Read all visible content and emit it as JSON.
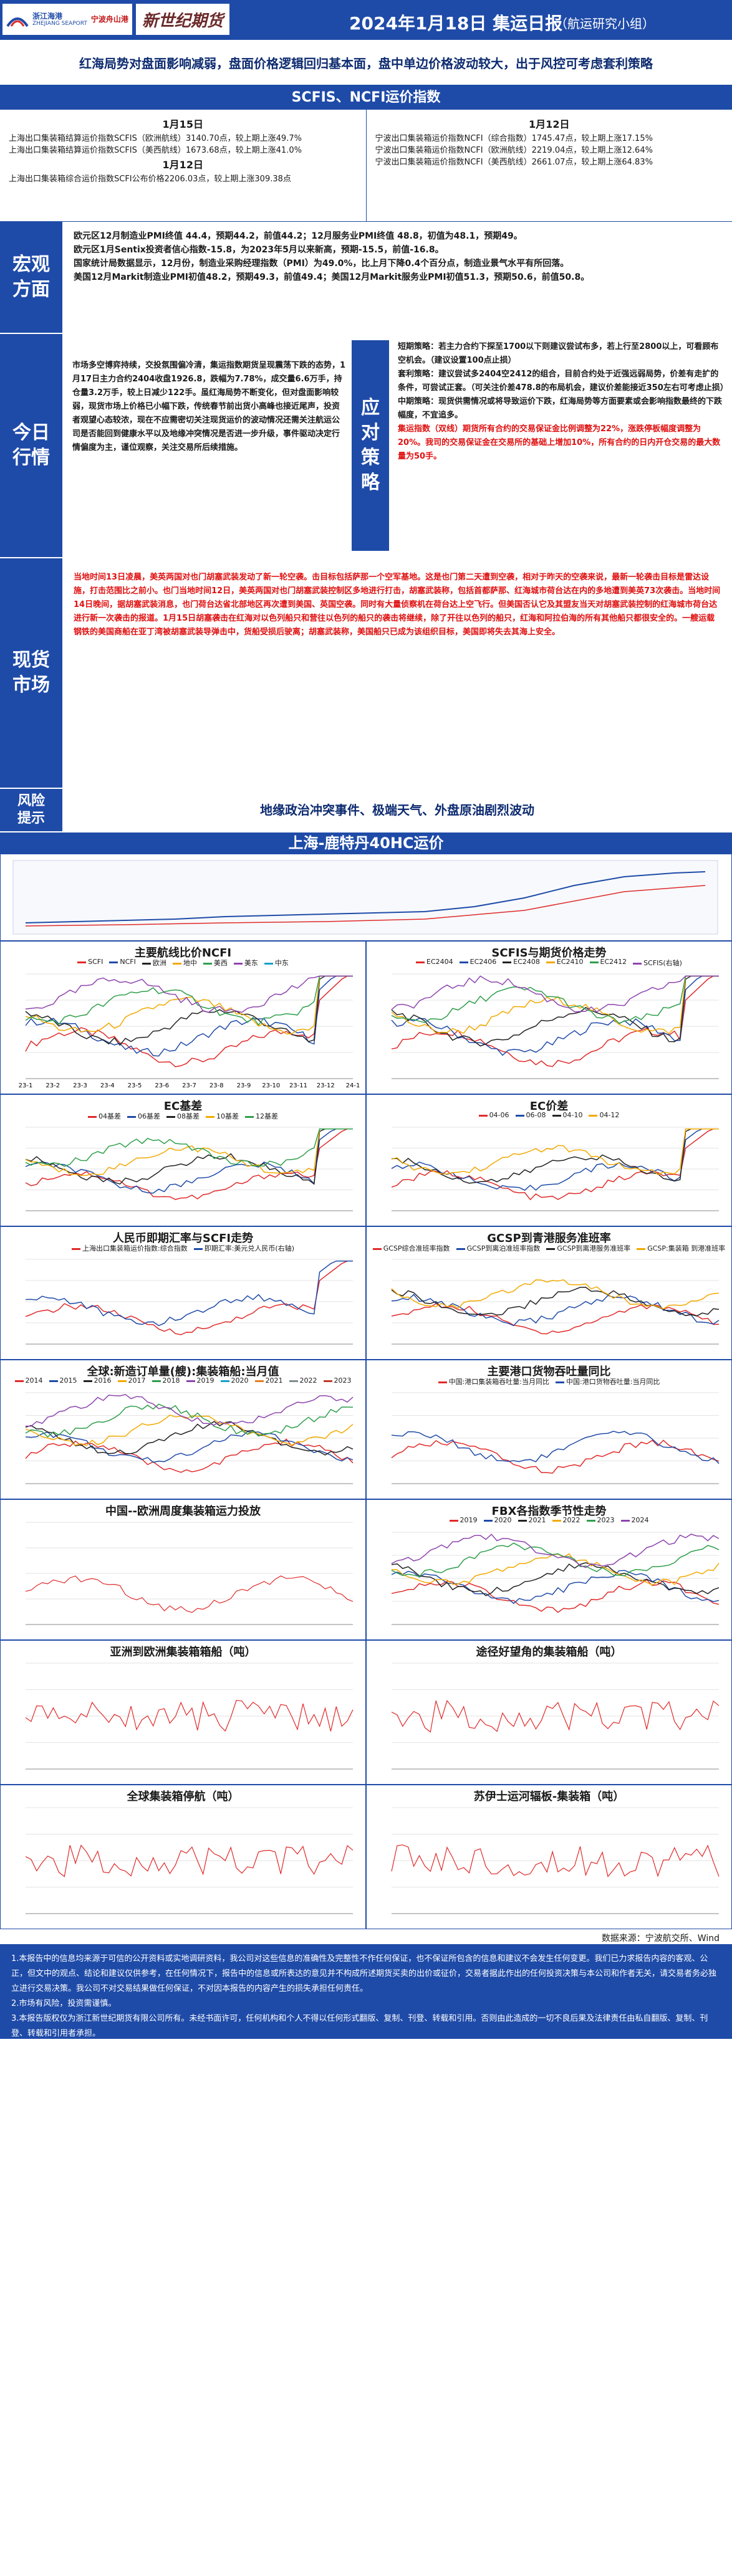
{
  "header": {
    "logo1_cn": "浙江海港",
    "logo1_en": "ZHEJIANG SEAPORT",
    "logo2_cn": "宁波舟山港",
    "logo3": "新世纪期货",
    "title": "2024年1月18日 集运日报",
    "subtitle": "（航运研究小组）"
  },
  "topic": "红海局势对盘面影响减弱，盘面价格逻辑回归基本面，盘中单边价格波动较大，出于风控可考虑套利策略",
  "index_band": "SCFIS、NCFI运价指数",
  "index": {
    "left_date1": "1月15日",
    "left_lines": [
      "上海出口集装箱结算运价指数SCFIS（欧洲航线）3140.70点，较上期上涨49.7%",
      "上海出口集装箱结算运价指数SCFIS（美西航线）1673.68点，较上期上涨41.0%"
    ],
    "left_date2": "1月12日",
    "left_lines2": [
      "上海出口集装箱综合运价指数SCFI公布价格2206.03点，较上期上涨309.38点"
    ],
    "right_date": "1月12日",
    "right_lines": [
      "宁波出口集装箱运价指数NCFI（综合指数）1745.47点，较上期上涨17.15%",
      "宁波出口集装箱运价指数NCFI（欧洲航线）2219.04点，较上期上涨12.64%",
      "宁波出口集装箱运价指数NCFI（美西航线）2661.07点，较上期上涨64.83%"
    ]
  },
  "macro": {
    "label": "宏观方面",
    "lines": [
      "欧元区12月制造业PMI终值 44.4，预期44.2，前值44.2；12月服务业PMI终值 48.8，初值为48.1，预期49。",
      "欧元区1月Sentix投资者信心指数-15.8，为2023年5月以来新高，预期-15.5，前值-16.8。",
      "国家统计局数据显示，12月份，制造业采购经理指数（PMI）为49.0%，比上月下降0.4个百分点，制造业景气水平有所回落。",
      "美国12月Markit制造业PMI初值48.2，预期49.3，前值49.4；美国12月Markit服务业PMI初值51.3，预期50.6，前值50.8。"
    ]
  },
  "today": {
    "label": "今日行情",
    "left_text": "市场多空博弈持续，交投氛围偏冷清，集运指数期货呈现震荡下跌的态势，1月17日主力合约2404收盘1926.8，跌幅为7.78%，成交量6.6万手，持仓量3.2万手，较上日减少122手。虽红海局势不断变化，但对盘面影响较弱，现货市场上价格已小幅下跌，传统春节前出货小高峰也接近尾声，投资者观望心态较浓，现在不应需密切关注现货运价的波动情况还需关注航运公司是否能回到健康水平以及地缘冲突情况是否进一步升级，事件驱动决定行情偏度为主，谨位观察，关注交易所后续措施。",
    "strategy_label": "应对策略",
    "right": {
      "short": "短期策略：若主力合约下探至1700以下则建议尝试布多，若上行至2800以上，可看顾布空机会。（建议设置100点止损）",
      "arb": "套利策略：建议尝试多2404空2412的组合，目前合约处于近强远弱局势，价差有走扩的条件，可尝试正套。（可关注价差478.8的布局机会，建议价差能接近350左右可考虑止损）",
      "mid": "中期策略：现货供需情况或将导致运价下跌，红海局势等方面要素或会影响指数最终的下跌幅度，不宜追多。",
      "red": "集运指数（双线）期货所有合约的交易保证金比例调整为22%，涨跌停板幅度调整为20%。我司的交易保证金在交易所的基础上增加10%，所有合约的日内开仓交易的最大数量为50手。"
    }
  },
  "spot": {
    "label": "现货市场",
    "text": "当地时间13日凌晨，美英两国对也门胡塞武装发动了新一轮空袭。击目标包括萨那一个空军基地。这是也门第二天遭到空袭，相对于昨天的空袭来说，最新一轮袭击目标是雷达设施，打击范围比之前小。也门当地时间12日，美英两国对也门胡塞武装控制区多地进行打击，胡塞武装称，包括首都萨那、红海城市荷台达在内的多地遭到美英73次袭击。当地时间14日晚间，据胡塞武装消息，也门荷台达省北部地区再次遭到美国、英国空袭。同时有大量侦察机在荷台达上空飞行。但美国否认它及其盟友当天对胡塞武装控制的红海城市荷台达进行新一次袭击的报道。1月15日胡塞袭击在红海对以色列船只和营往以色列的船只的袭击将继续，除了开往以色列的船只，红海和阿拉伯海的所有其他船只都很安全的。一艘运载钢铁的美国商船在亚丁湾被胡塞武装导弹击中，货船受损后驶离；胡塞武装称，美国船只已成为该组织目标，美国即将失去其海上安全。"
  },
  "risk": {
    "label": "风险提示",
    "text": "地缘政治冲突事件、极端天气、外盘原油剧烈波动"
  },
  "shanghai_band": "上海-鹿特丹40HC运价",
  "charts": {
    "c1": {
      "title": "主要航线比价NCFI",
      "legend": [
        "SCFI",
        "NCFI",
        "欧洲",
        "地中",
        "美西",
        "美东",
        "中东"
      ],
      "ticks": [
        "23-1",
        "23-2",
        "23-3",
        "23-4",
        "23-5",
        "23-6",
        "23-7",
        "23-8",
        "23-9",
        "23-10",
        "23-11",
        "23-12",
        "24-1"
      ]
    },
    "c2": {
      "title": "SCFIS与期货价格走势",
      "legend": [
        "EC2404",
        "EC2406",
        "EC2408",
        "EC2410",
        "EC2412",
        "SCFIS(右轴)"
      ]
    },
    "c3": {
      "title": "EC基差",
      "legend": [
        "04基差",
        "06基差",
        "08基差",
        "10基差",
        "12基差"
      ]
    },
    "c4": {
      "title": "EC价差",
      "legend": [
        "04-06",
        "06-08",
        "04-10",
        "04-12"
      ]
    },
    "c5": {
      "title": "人民币即期汇率与SCFI走势",
      "legend": [
        "上海出口集装箱运价指数:综合指数",
        "即期汇率:美元兑人民币(右轴)"
      ]
    },
    "c6": {
      "title": "GCSP到青港服务准班率",
      "legend": [
        "GCSP综合准班率指数",
        "GCSP到离泊准班率指数",
        "GCSP到离港服务准班率",
        "GCSP:集装箱 到港准班率"
      ]
    },
    "c7": {
      "title": "全球:新造订单量(艘):集装箱船:当月值",
      "legend": [
        "2014",
        "2015",
        "2016",
        "2017",
        "2018",
        "2019",
        "2020",
        "2021",
        "2022",
        "2023"
      ]
    },
    "c8": {
      "title": "主要港口货物吞吐量同比",
      "legend": [
        "中国:港口集装箱吞吐量:当月同比",
        "中国:港口货物吞吐量:当月同比"
      ]
    },
    "c9": {
      "title": "中国--欧洲周度集装箱运力投放"
    },
    "c10": {
      "title": "FBX各指数季节性走势",
      "legend": [
        "2019",
        "2020",
        "2021",
        "2022",
        "2023",
        "2024"
      ]
    },
    "c11": {
      "title": "亚洲到欧洲集装箱箱船（吨）"
    },
    "c12": {
      "title": "途径好望角的集装箱船（吨）"
    },
    "c13": {
      "title": "全球集装箱停航（吨）"
    },
    "c14": {
      "title": "苏伊士运河辐板-集装箱（吨）"
    }
  },
  "source": "数据来源：宁波航交所、Wind",
  "disclaimer": [
    "1.本报告中的信息均来源于可信的公开资料或实地调研资料，我公司对这些信息的准确性及完整性不作任何保证，也不保证所包含的信息和建议不会发生任何变更。我们已力求报告内容的客观、公正，但文中的观点、结论和建议仅供参考，在任何情况下，报告中的信息或所表达的意见并不构成所述期货买卖的出价或征价，交易者据此作出的任何投资决策与本公司和作者无关，请交易者务必独立进行交易决策。我公司不对交易结果做任何保证，不对因本报告的内容产生的损失承担任何责任。",
    "2.市场有风险，投资需谨慎。",
    "3.本报告版权仅为浙江新世纪期货有限公司所有。未经书面许可，任何机构和个人不得以任何形式翻版、复制、刊登、转载和引用。否则由此造成的一切不良后果及法律责任由私自翻版、复制、刊登、转载和引用者承担。"
  ]
}
